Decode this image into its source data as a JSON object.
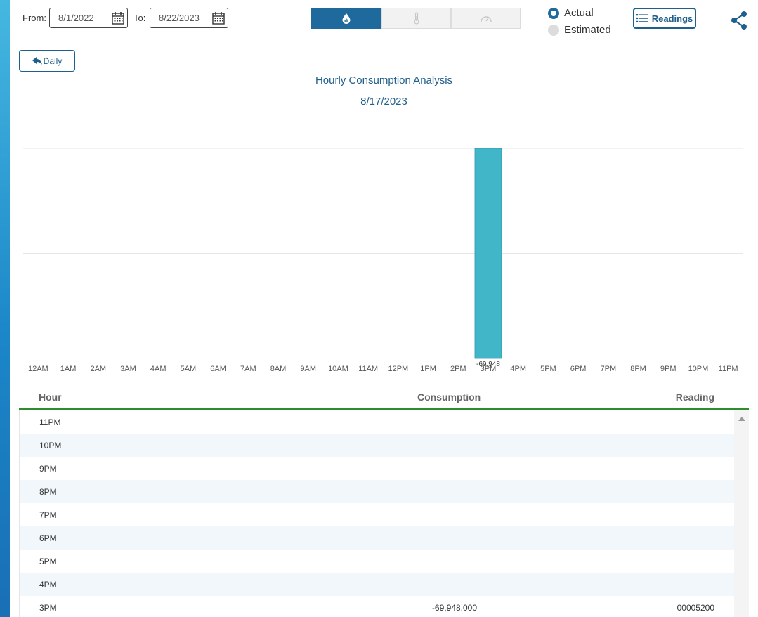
{
  "filters": {
    "from_label": "From:",
    "from_value": "8/1/2022",
    "to_label": "To:",
    "to_value": "8/22/2023"
  },
  "utility_tabs": [
    {
      "icon": "water-drop-icon",
      "active": true
    },
    {
      "icon": "thermometer-icon",
      "active": false
    },
    {
      "icon": "gauge-icon",
      "active": false
    }
  ],
  "radio": {
    "actual_label": "Actual",
    "estimated_label": "Estimated",
    "selected": "Actual"
  },
  "readings_button": "Readings",
  "back_button": "Daily",
  "chart_data": {
    "type": "bar",
    "title": "Hourly Consumption Analysis",
    "subtitle": "8/17/2023",
    "categories": [
      "12AM",
      "1AM",
      "2AM",
      "3AM",
      "4AM",
      "5AM",
      "6AM",
      "7AM",
      "8AM",
      "9AM",
      "10AM",
      "11AM",
      "12PM",
      "1PM",
      "2PM",
      "3PM",
      "4PM",
      "5PM",
      "6PM",
      "7PM",
      "8PM",
      "9PM",
      "10PM",
      "11PM"
    ],
    "values": [
      null,
      null,
      null,
      null,
      null,
      null,
      null,
      null,
      null,
      null,
      null,
      null,
      null,
      null,
      null,
      -69948,
      null,
      null,
      null,
      null,
      null,
      null,
      null,
      null
    ],
    "data_labels": {
      "3PM": "-69,948"
    },
    "bar_color": "#41b6c8",
    "grid": true
  },
  "table": {
    "headers": {
      "hour": "Hour",
      "consumption": "Consumption",
      "reading": "Reading"
    },
    "rows": [
      {
        "hour": "11PM",
        "consumption": "",
        "reading": ""
      },
      {
        "hour": "10PM",
        "consumption": "",
        "reading": ""
      },
      {
        "hour": "9PM",
        "consumption": "",
        "reading": ""
      },
      {
        "hour": "8PM",
        "consumption": "",
        "reading": ""
      },
      {
        "hour": "7PM",
        "consumption": "",
        "reading": ""
      },
      {
        "hour": "6PM",
        "consumption": "",
        "reading": ""
      },
      {
        "hour": "5PM",
        "consumption": "",
        "reading": ""
      },
      {
        "hour": "4PM",
        "consumption": "",
        "reading": ""
      },
      {
        "hour": "3PM",
        "consumption": "-69,948.000",
        "reading": "00005200"
      }
    ]
  },
  "colors": {
    "accent": "#1f6a9c",
    "header_rule": "#2e8b2e",
    "row_alt": "#f1f7fb"
  }
}
